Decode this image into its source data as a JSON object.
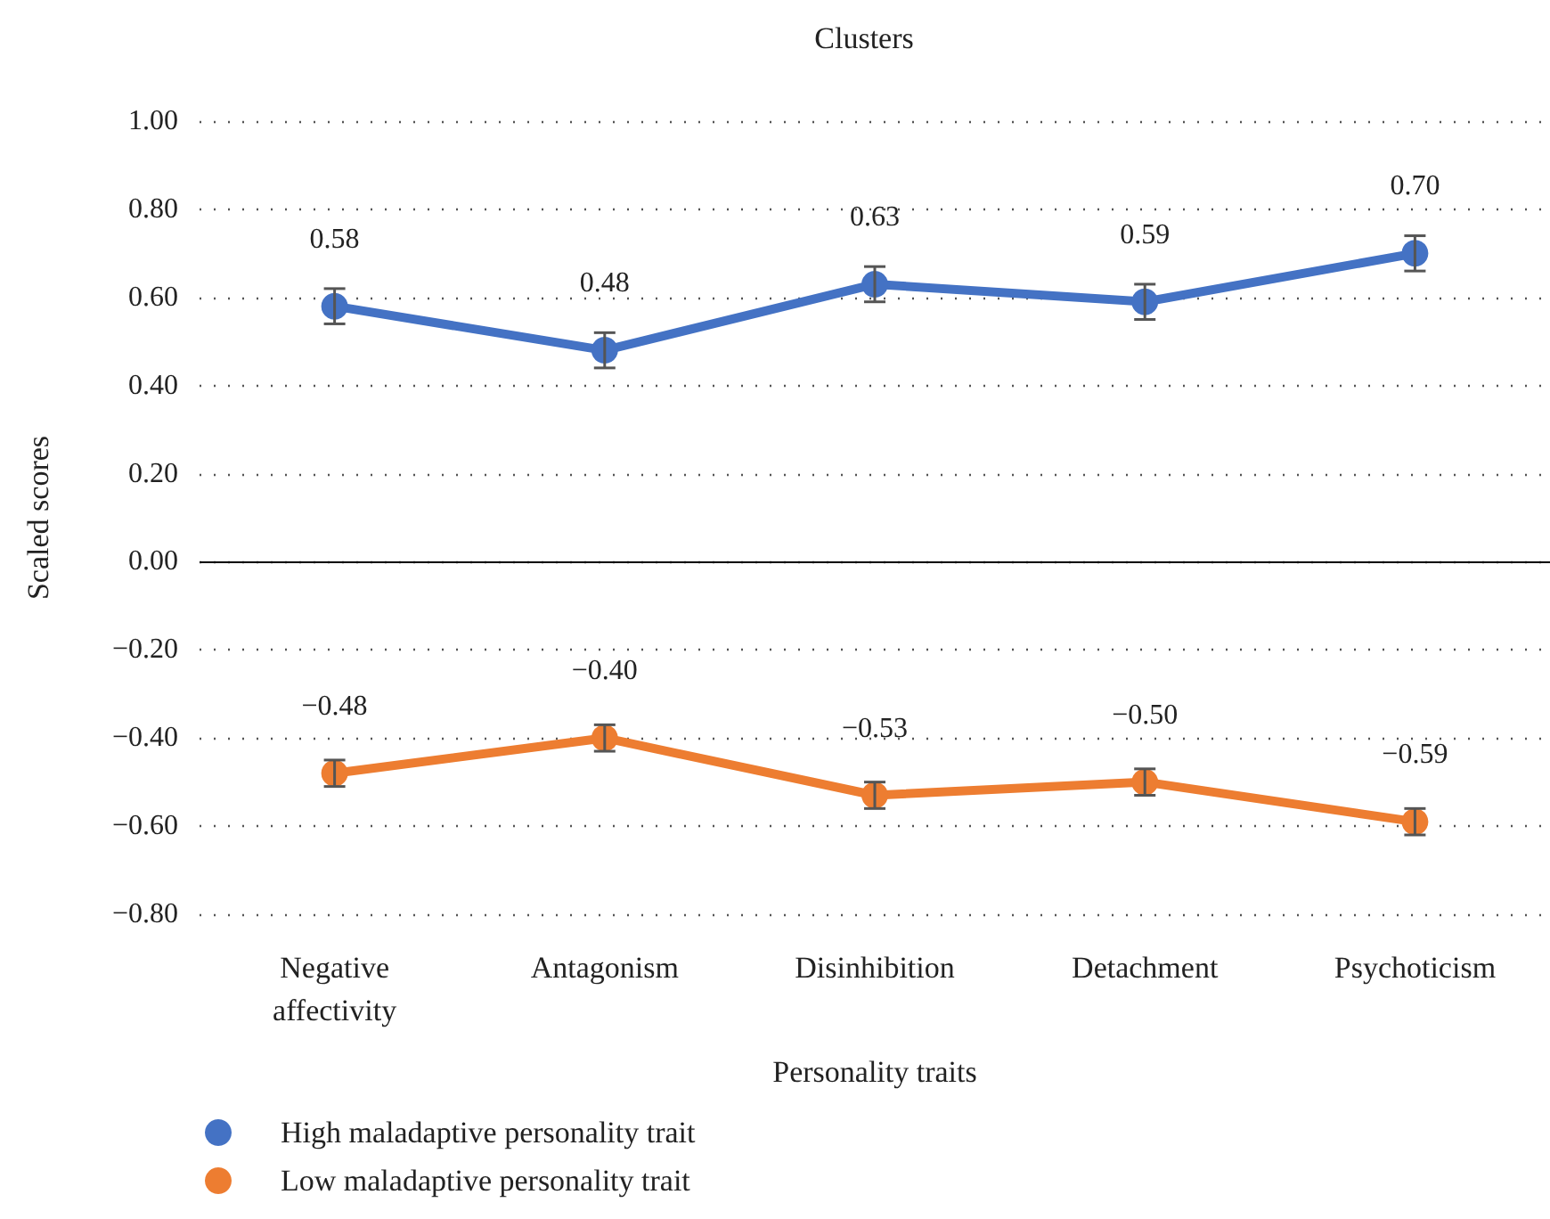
{
  "chart_data": {
    "type": "line",
    "title": "Clusters",
    "xlabel": "Personality traits",
    "ylabel": "Scaled scores",
    "categories": [
      "Negative\naffectivity",
      "Antagonism",
      "Disinhibition",
      "Detachment",
      "Psychoticism"
    ],
    "series": [
      {
        "name": "High maladaptive personality trait",
        "color": "#4472c4",
        "values": [
          0.58,
          0.48,
          0.63,
          0.59,
          0.7
        ],
        "errors": [
          0.04,
          0.04,
          0.04,
          0.04,
          0.04
        ],
        "value_labels": [
          "0.58",
          "0.48",
          "0.63",
          "0.59",
          "0.70"
        ]
      },
      {
        "name": "Low maladaptive personality trait",
        "color": "#ed7d31",
        "values": [
          -0.48,
          -0.4,
          -0.53,
          -0.5,
          -0.59
        ],
        "errors": [
          0.03,
          0.03,
          0.03,
          0.03,
          0.03
        ],
        "value_labels": [
          "−0.48",
          "−0.40",
          "−0.53",
          "−0.50",
          "−0.59"
        ]
      }
    ],
    "ylim": [
      -0.8,
      1.0
    ],
    "yticks": [
      {
        "value": -0.8,
        "label": "−0.80"
      },
      {
        "value": -0.6,
        "label": "−0.60"
      },
      {
        "value": -0.4,
        "label": "−0.40"
      },
      {
        "value": -0.2,
        "label": "−0.20"
      },
      {
        "value": 0,
        "label": "0.00"
      },
      {
        "value": 0.2,
        "label": "0.20"
      },
      {
        "value": 0.4,
        "label": "0.40"
      },
      {
        "value": 0.6,
        "label": "0.60"
      },
      {
        "value": 0.8,
        "label": "0.80"
      },
      {
        "value": 1.0,
        "label": "1.00"
      }
    ],
    "ref_lines": [
      {
        "axis": "y",
        "value": 0
      }
    ],
    "grid": "y",
    "legend": "bottom left",
    "marker": "circle",
    "line_style": "solid"
  }
}
